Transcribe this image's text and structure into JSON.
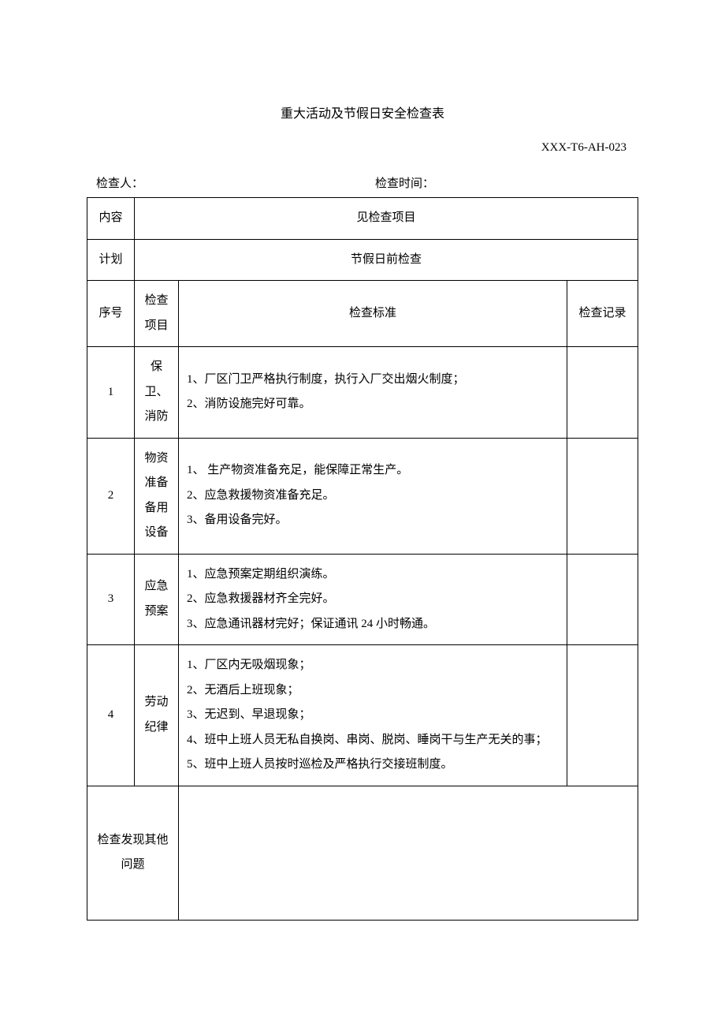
{
  "title": "重大活动及节假日安全检查表",
  "doc_code": "XXX-T6-AH-023",
  "meta": {
    "inspector_label": "检查人：",
    "inspector_value": "",
    "time_label": "检查时间：",
    "time_value": ""
  },
  "header_rows": {
    "content_label": "内容",
    "content_value": "见检查项目",
    "plan_label": "计划",
    "plan_value": "节假日前检查"
  },
  "columns": {
    "seq": "序号",
    "item": "检查项目",
    "standard": "检查标准",
    "record": "检查记录"
  },
  "rows": [
    {
      "seq": "1",
      "item": "保卫、消防",
      "standard": "1、厂区门卫严格执行制度，执行入厂交出烟火制度；\n2、消防设施完好可靠。",
      "record": ""
    },
    {
      "seq": "2",
      "item": "物资准备备用设备",
      "standard": "1、 生产物资准备充足，能保障正常生产。\n2、应急救援物资准备充足。\n3、备用设备完好。",
      "record": ""
    },
    {
      "seq": "3",
      "item": "应急预案",
      "standard": "1、应急预案定期组织演练。\n2、应急救援器材齐全完好。\n3、应急通讯器材完好；保证通讯 24 小时畅通。",
      "record": ""
    },
    {
      "seq": "4",
      "item": "劳动纪律",
      "standard": "1、厂区内无吸烟现象；\n2、无酒后上班现象；\n3、无迟到、早退现象；\n4、班中上班人员无私自换岗、串岗、脱岗、睡岗干与生产无关的事；\n5、班中上班人员按时巡检及严格执行交接班制度。",
      "record": ""
    }
  ],
  "footer": {
    "other_issues_label": "检查发现其他问题",
    "other_issues_value": ""
  },
  "style": {
    "page_background": "#ffffff",
    "border_color": "#000000",
    "text_color": "#000000",
    "title_fontsize": 16,
    "body_fontsize": 15,
    "line_height": 2.1,
    "col_widths": {
      "seq": 60,
      "item": 56,
      "record": 90
    },
    "font_family": "SimSun"
  }
}
